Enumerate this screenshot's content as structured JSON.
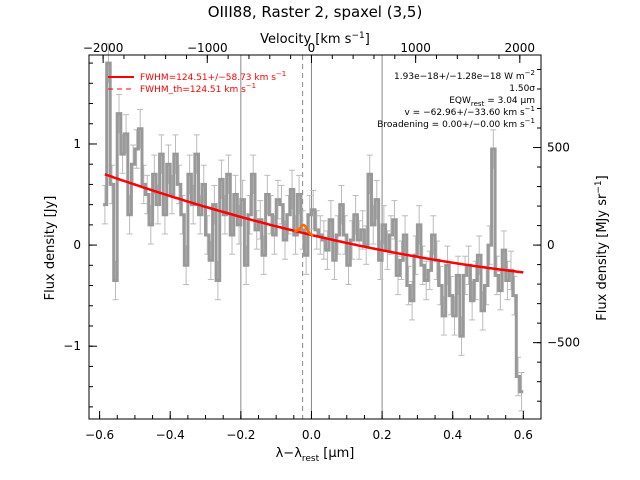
{
  "chart_data": {
    "type": "line",
    "title": "OIII88, Raster 2, spaxel (3,5)",
    "xlabel": "λ−λ",
    "xlabel_sub": "rest",
    "xlabel_unit": " [μm]",
    "ylabel": "Flux density [Jy]",
    "top_axis_label": "Velocity [km s",
    "top_axis_label_sup": "−1",
    "top_axis_label_end": "]",
    "right_axis_label": "Flux density [MJy sr",
    "right_axis_label_sup": "−1",
    "right_axis_label_end": "]",
    "xlim": [
      -0.63,
      0.65
    ],
    "ylim": [
      -1.72,
      1.88
    ],
    "x_ticks": [
      -0.6,
      -0.4,
      -0.2,
      0.0,
      0.2,
      0.4,
      0.6
    ],
    "x_tick_labels": [
      "−0.6",
      "−0.4",
      "−0.2",
      "0.0",
      "0.2",
      "0.4",
      "0.6"
    ],
    "y_ticks": [
      -1,
      0,
      1
    ],
    "y_tick_labels": [
      "−1",
      "0",
      "1"
    ],
    "top_ticks": [
      -2000,
      -1000,
      0,
      1000,
      2000
    ],
    "top_tick_labels": [
      "−2000",
      "−1000",
      "0",
      "1000",
      "2000"
    ],
    "top_scale_um_per_kms": 0.000295,
    "right_ticks": [
      -500,
      0,
      500
    ],
    "right_tick_labels": [
      "−500",
      "0",
      "500"
    ],
    "right_scale_jy_per_unit": 0.00193,
    "vertical_lines": [
      -0.2,
      0.0,
      0.2
    ],
    "dashed_line_x": -0.025,
    "legend": [
      {
        "label": "FWHM=124.51+/−58.73 km s",
        "sup": "−1",
        "style": "solid"
      },
      {
        "label": "FWHM_th=124.51 km s",
        "sup": "−1",
        "style": "dashed"
      }
    ],
    "annotations": [
      {
        "text": "1.93e−18+/−1.28e−18 W m",
        "sup": "−2"
      },
      {
        "text": "1.50σ"
      },
      {
        "text": "EQW",
        "sub": "rest",
        "rest": " = 3.04 μm"
      },
      {
        "text": "v = −62.96+/−33.60 km s",
        "sup": "−1"
      },
      {
        "text": "Broadening = 0.00+/−0.00 km s",
        "sup": "−1"
      }
    ],
    "x": [
      -0.585,
      -0.575,
      -0.565,
      -0.555,
      -0.545,
      -0.535,
      -0.525,
      -0.515,
      -0.505,
      -0.495,
      -0.485,
      -0.475,
      -0.465,
      -0.455,
      -0.445,
      -0.435,
      -0.425,
      -0.415,
      -0.405,
      -0.395,
      -0.385,
      -0.375,
      -0.365,
      -0.355,
      -0.345,
      -0.335,
      -0.325,
      -0.315,
      -0.305,
      -0.295,
      -0.285,
      -0.275,
      -0.265,
      -0.255,
      -0.245,
      -0.235,
      -0.225,
      -0.215,
      -0.205,
      -0.195,
      -0.185,
      -0.175,
      -0.165,
      -0.155,
      -0.145,
      -0.135,
      -0.125,
      -0.115,
      -0.105,
      -0.095,
      -0.085,
      -0.075,
      -0.065,
      -0.055,
      -0.045,
      -0.035,
      -0.025,
      -0.015,
      -0.005,
      0.005,
      0.015,
      0.025,
      0.035,
      0.045,
      0.055,
      0.065,
      0.075,
      0.085,
      0.095,
      0.105,
      0.115,
      0.125,
      0.135,
      0.145,
      0.155,
      0.165,
      0.175,
      0.185,
      0.195,
      0.205,
      0.215,
      0.225,
      0.235,
      0.245,
      0.255,
      0.265,
      0.275,
      0.285,
      0.295,
      0.305,
      0.315,
      0.325,
      0.335,
      0.345,
      0.355,
      0.365,
      0.375,
      0.385,
      0.395,
      0.405,
      0.415,
      0.425,
      0.435,
      0.445,
      0.455,
      0.465,
      0.475,
      0.485,
      0.495,
      0.505,
      0.515,
      0.525,
      0.535,
      0.545,
      0.555,
      0.565,
      0.575,
      0.585,
      0.595
    ],
    "values": [
      0.4,
      1.8,
      0.6,
      -0.35,
      1.3,
      0.9,
      1.1,
      0.3,
      0.8,
      0.95,
      1.15,
      0.6,
      0.5,
      0.2,
      0.7,
      0.4,
      0.9,
      0.3,
      0.8,
      0.5,
      0.9,
      0.6,
      0.3,
      -0.2,
      0.7,
      0.4,
      0.9,
      0.3,
      0.6,
      0.1,
      -0.15,
      0.4,
      -0.35,
      0.65,
      0.3,
      0.7,
      0.1,
      0.5,
      0.2,
      0.45,
      -0.2,
      0.3,
      0.7,
      0.15,
      0.25,
      -0.1,
      0.5,
      0.3,
      0.1,
      0.45,
      0.4,
      0.05,
      0.3,
      0.55,
      0.1,
      0.5,
      0.15,
      -0.1,
      0.3,
      0.35,
      0.15,
      0.1,
      0.05,
      -0.05,
      0.25,
      -0.15,
      0.1,
      0.4,
      0.1,
      -0.2,
      0.05,
      0.3,
      0.05,
      0.15,
      0.0,
      0.7,
      0.2,
      0.45,
      -0.15,
      0.2,
      -0.05,
      0.1,
      0.25,
      -0.3,
      -0.15,
      0.1,
      -0.4,
      -0.55,
      -0.1,
      0.2,
      -0.2,
      -0.35,
      -0.25,
      0.1,
      -0.15,
      -0.4,
      -0.7,
      -0.2,
      -0.5,
      -0.7,
      -0.3,
      -0.9,
      -0.3,
      -0.2,
      -0.55,
      -0.35,
      -0.1,
      -0.65,
      -0.4,
      0.0,
      0.95,
      -0.3,
      -0.45,
      -0.05,
      -0.35,
      -0.25,
      -0.5,
      -1.3,
      -1.45
    ],
    "error": 0.19,
    "fit": {
      "baseline_x": [
        -0.585,
        0.0,
        0.6
      ],
      "baseline_y": [
        0.7,
        0.1,
        -0.27
      ],
      "gaussian_center": -0.022,
      "gaussian_amplitude": 0.08,
      "gaussian_sigma": 0.009
    },
    "colors": {
      "data": "#999999",
      "fit": "#ff0000",
      "gauss": "#ff6a00",
      "axis": "#000000",
      "guide": "#888888"
    }
  }
}
